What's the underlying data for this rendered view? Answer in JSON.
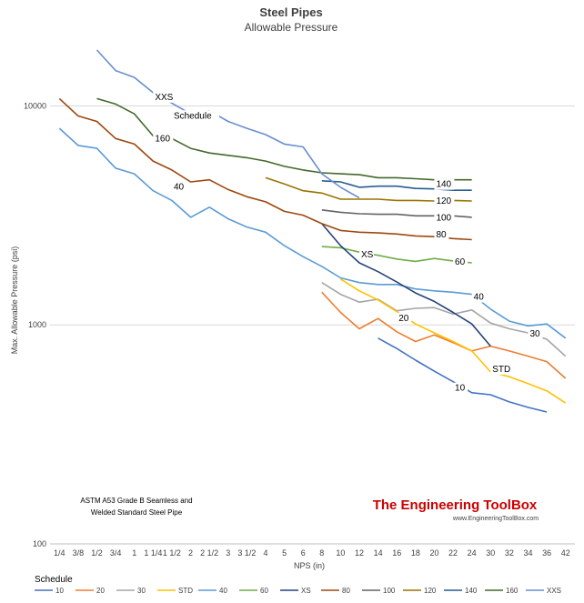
{
  "chart_data": {
    "type": "line",
    "title": "Steel Pipes",
    "subtitle": "Allowable Pressure",
    "xlabel": "NPS (in)",
    "ylabel": "Max. Allowable Pressure (psi)",
    "yscale": "log",
    "ylim": [
      100,
      20000
    ],
    "yticks": [
      100,
      1000,
      10000
    ],
    "grid": "horizontal",
    "legend_title": "Schedule",
    "legend_position": "bottom",
    "categories": [
      "1/4",
      "3/8",
      "1/2",
      "3/4",
      "1",
      "1 1/4",
      "1 1/2",
      "2",
      "2 1/2",
      "3",
      "3 1/2",
      "4",
      "5",
      "6",
      "8",
      "10",
      "12",
      "14",
      "16",
      "18",
      "20",
      "22",
      "24",
      "30",
      "32",
      "34",
      "36",
      "42"
    ],
    "series": [
      {
        "name": "10",
        "color": "#4472C4",
        "values": [
          null,
          null,
          null,
          null,
          null,
          null,
          null,
          null,
          null,
          null,
          null,
          null,
          null,
          null,
          null,
          null,
          null,
          870,
          780,
          690,
          615,
          550,
          490,
          480,
          445,
          420,
          400,
          null
        ]
      },
      {
        "name": "20",
        "color": "#ED7D31",
        "values": [
          null,
          null,
          null,
          null,
          null,
          null,
          null,
          null,
          null,
          null,
          null,
          null,
          null,
          null,
          1410,
          1140,
          960,
          1070,
          930,
          840,
          900,
          830,
          760,
          800,
          760,
          720,
          680,
          570
        ]
      },
      {
        "name": "30",
        "color": "#A5A5A5",
        "values": [
          null,
          null,
          null,
          null,
          null,
          null,
          null,
          null,
          null,
          null,
          null,
          null,
          null,
          null,
          1560,
          1380,
          1270,
          1310,
          1160,
          1190,
          1200,
          1120,
          1170,
          1020,
          960,
          920,
          860,
          720
        ]
      },
      {
        "name": "STD",
        "color": "#FFC000",
        "values": [
          null,
          null,
          null,
          null,
          null,
          null,
          null,
          null,
          null,
          null,
          null,
          null,
          null,
          null,
          null,
          1620,
          1430,
          1300,
          1150,
          1010,
          920,
          840,
          760,
          610,
          580,
          540,
          500,
          440
        ]
      },
      {
        "name": "40",
        "color": "#5B9BD5",
        "values": [
          7900,
          6600,
          6400,
          5200,
          4900,
          4100,
          3700,
          3100,
          3450,
          3050,
          2800,
          2650,
          2300,
          2050,
          1850,
          1640,
          1560,
          1530,
          1530,
          1460,
          1430,
          1410,
          1380,
          1180,
          1040,
          990,
          1010,
          870
        ]
      },
      {
        "name": "60",
        "color": "#70AD47",
        "values": [
          null,
          null,
          null,
          null,
          null,
          null,
          null,
          null,
          null,
          null,
          null,
          null,
          null,
          null,
          2280,
          2250,
          2150,
          2080,
          2000,
          1950,
          2010,
          1960,
          1920,
          null,
          null,
          null,
          null,
          null
        ]
      },
      {
        "name": "XS",
        "color": "#264478",
        "values": [
          null,
          null,
          null,
          null,
          null,
          null,
          null,
          null,
          null,
          null,
          null,
          null,
          null,
          null,
          2900,
          2300,
          1920,
          1750,
          1570,
          1400,
          1280,
          1140,
          1010,
          800,
          null,
          null,
          null,
          null
        ]
      },
      {
        "name": "80",
        "color": "#9E480E",
        "values": [
          10800,
          9000,
          8500,
          7100,
          6700,
          5600,
          5100,
          4500,
          4600,
          4150,
          3850,
          3650,
          3300,
          3170,
          2900,
          2700,
          2650,
          2630,
          2600,
          2550,
          2530,
          2480,
          2450,
          null,
          null,
          null,
          null,
          null
        ]
      },
      {
        "name": "100",
        "color": "#636363",
        "values": [
          null,
          null,
          null,
          null,
          null,
          null,
          null,
          null,
          null,
          null,
          null,
          null,
          null,
          null,
          3350,
          3270,
          3220,
          3200,
          3200,
          3150,
          3150,
          3150,
          3100,
          null,
          null,
          null,
          null,
          null
        ]
      },
      {
        "name": "120",
        "color": "#997300",
        "values": [
          null,
          null,
          null,
          null,
          null,
          null,
          null,
          null,
          null,
          null,
          null,
          4700,
          4400,
          4100,
          4000,
          3750,
          3750,
          3750,
          3700,
          3700,
          3680,
          3700,
          3680,
          null,
          null,
          null,
          null,
          null
        ]
      },
      {
        "name": "140",
        "color": "#255E91",
        "values": [
          null,
          null,
          null,
          null,
          null,
          null,
          null,
          null,
          null,
          null,
          null,
          null,
          null,
          null,
          4550,
          4500,
          4250,
          4300,
          4300,
          4200,
          4180,
          4120,
          4120,
          null,
          null,
          null,
          null,
          null
        ]
      },
      {
        "name": "160",
        "color": "#43682B",
        "values": [
          null,
          null,
          10800,
          10200,
          9200,
          7300,
          7100,
          6400,
          6100,
          5950,
          5800,
          5600,
          5300,
          5100,
          4950,
          4900,
          4850,
          4700,
          4700,
          4650,
          4600,
          4600,
          4600,
          null,
          null,
          null,
          null,
          null
        ]
      },
      {
        "name": "XXS",
        "color": "#698ED0",
        "values": [
          null,
          null,
          18000,
          14500,
          13500,
          11500,
          10300,
          9200,
          9500,
          8500,
          7900,
          7400,
          6700,
          6500,
          4900,
          4250,
          3800,
          null,
          null,
          null,
          null,
          null,
          null,
          null,
          null,
          null,
          null,
          null
        ]
      }
    ],
    "line_labels": [
      {
        "text": "Schedule",
        "series": "",
        "at": "1 1/2",
        "dy": -22
      },
      {
        "text": "XXS",
        "series": "XXS",
        "at": "1 1/4",
        "dy": 8
      },
      {
        "text": "160",
        "series": "160",
        "at": "1 1/4",
        "dy": 6
      },
      {
        "text": "40",
        "series": "40",
        "at": "1 1/2",
        "dy": -12
      },
      {
        "text": "XS",
        "series": "XS",
        "at": "12",
        "dy": -6
      },
      {
        "text": "140",
        "series": "140",
        "at": "20",
        "dy": -2
      },
      {
        "text": "120",
        "series": "120",
        "at": "20",
        "dy": 3
      },
      {
        "text": "100",
        "series": "100",
        "at": "20",
        "dy": 5
      },
      {
        "text": "80",
        "series": "80",
        "at": "20",
        "dy": 1
      },
      {
        "text": "60",
        "series": "60",
        "at": "22",
        "dy": 4
      },
      {
        "text": "40",
        "series": "40",
        "at": "24",
        "dy": 6
      },
      {
        "text": "30",
        "series": "30",
        "at": "34",
        "dy": 4
      },
      {
        "text": "20",
        "series": "20",
        "at": "16",
        "dy": -12
      },
      {
        "text": "STD",
        "series": "STD",
        "at": "30",
        "dy": 0
      },
      {
        "text": "10",
        "series": "10",
        "at": "22",
        "dy": 10
      }
    ],
    "note_lines": [
      "ASTM A53 Grade B Seamless  and",
      "Welded Standard Steel Pipe"
    ],
    "brand": {
      "name": "The Engineering ToolBox",
      "url": "www.EngineeringToolBox.com"
    }
  }
}
